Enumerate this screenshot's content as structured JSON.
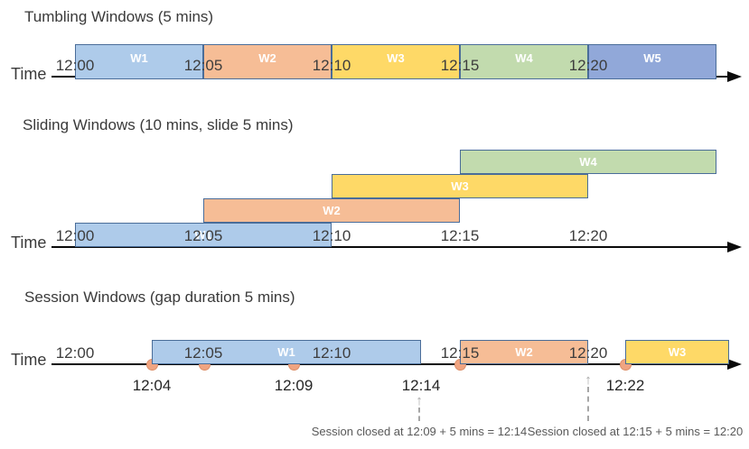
{
  "colors": {
    "blue": "#aecbea",
    "orange": "#f6bd96",
    "yellow": "#fed967",
    "green": "#c2dbae",
    "indigo": "#91a8d9",
    "bar_border": "#4a6d99",
    "dot_fill": "#f0a481",
    "dot_border": "#dd8f68",
    "axis": "#0a0a0a",
    "title_text": "#3a3a3a",
    "tick_text": "#3d3d3d",
    "note_text": "#595959",
    "arrow_gray": "#a6a6a6",
    "window_label_text": "#ffffff"
  },
  "sections": [
    {
      "id": "tumbling",
      "title": "Tumbling Windows (5 mins)",
      "axis_label": "Time",
      "ticks": [
        "12:00",
        "12:05",
        "12:10",
        "12:15",
        "12:20"
      ],
      "windows": [
        {
          "label": "W1",
          "start": "12:00",
          "end": "12:05",
          "color": "blue",
          "row": 0
        },
        {
          "label": "W2",
          "start": "12:05",
          "end": "12:10",
          "color": "orange",
          "row": 0
        },
        {
          "label": "W3",
          "start": "12:10",
          "end": "12:15",
          "color": "yellow",
          "row": 0
        },
        {
          "label": "W4",
          "start": "12:15",
          "end": "12:20",
          "color": "green",
          "row": 0
        },
        {
          "label": "W5",
          "start": "12:20",
          "end": "12:25",
          "color": "indigo",
          "row": 0
        }
      ],
      "events": [],
      "annotations": []
    },
    {
      "id": "sliding",
      "title": "Sliding Windows (10 mins, slide 5 mins)",
      "axis_label": "Time",
      "ticks": [
        "12:00",
        "12:05",
        "12:10",
        "12:15",
        "12:20"
      ],
      "windows": [
        {
          "label": "W1",
          "start": "12:00",
          "end": "12:10",
          "color": "blue",
          "row": 0
        },
        {
          "label": "W2",
          "start": "12:05",
          "end": "12:15",
          "color": "orange",
          "row": 1
        },
        {
          "label": "W3",
          "start": "12:10",
          "end": "12:20",
          "color": "yellow",
          "row": 2
        },
        {
          "label": "W4",
          "start": "12:15",
          "end": "12:25",
          "color": "green",
          "row": 3
        }
      ],
      "events": [],
      "annotations": []
    },
    {
      "id": "session",
      "title": "Session Windows (gap duration 5 mins)",
      "axis_label": "Time",
      "ticks": [
        "12:00",
        "12:05",
        "12:10",
        "12:15",
        "12:20"
      ],
      "windows": [
        {
          "label": "W1",
          "start": "12:04",
          "end": "12:14",
          "color": "blue",
          "row": 0
        },
        {
          "label": "W2",
          "start": "12:15",
          "end": "12:20",
          "color": "orange",
          "row": 0
        },
        {
          "label": "W3",
          "start": "12:22",
          "end": null,
          "color": "yellow",
          "row": 0
        }
      ],
      "events": [
        {
          "time": "12:04",
          "dot": true,
          "label_below": "12:04"
        },
        {
          "time": "12:06",
          "dot": true,
          "label_below": ""
        },
        {
          "time": "12:09",
          "dot": true,
          "label_below": "12:09"
        },
        {
          "time": "12:14",
          "dot": false,
          "label_below": "12:14"
        },
        {
          "time": "12:15",
          "dot": true,
          "label_below": ""
        },
        {
          "time": "12:22",
          "dot": true,
          "label_below": "12:22"
        }
      ],
      "annotations": [
        {
          "text": "Session closed at 12:09 + 5 mins = 12:14",
          "arrow_time": "12:14"
        },
        {
          "text": "Session closed at 12:15 + 5 mins = 12:20",
          "arrow_time": "12:20"
        }
      ]
    }
  ]
}
